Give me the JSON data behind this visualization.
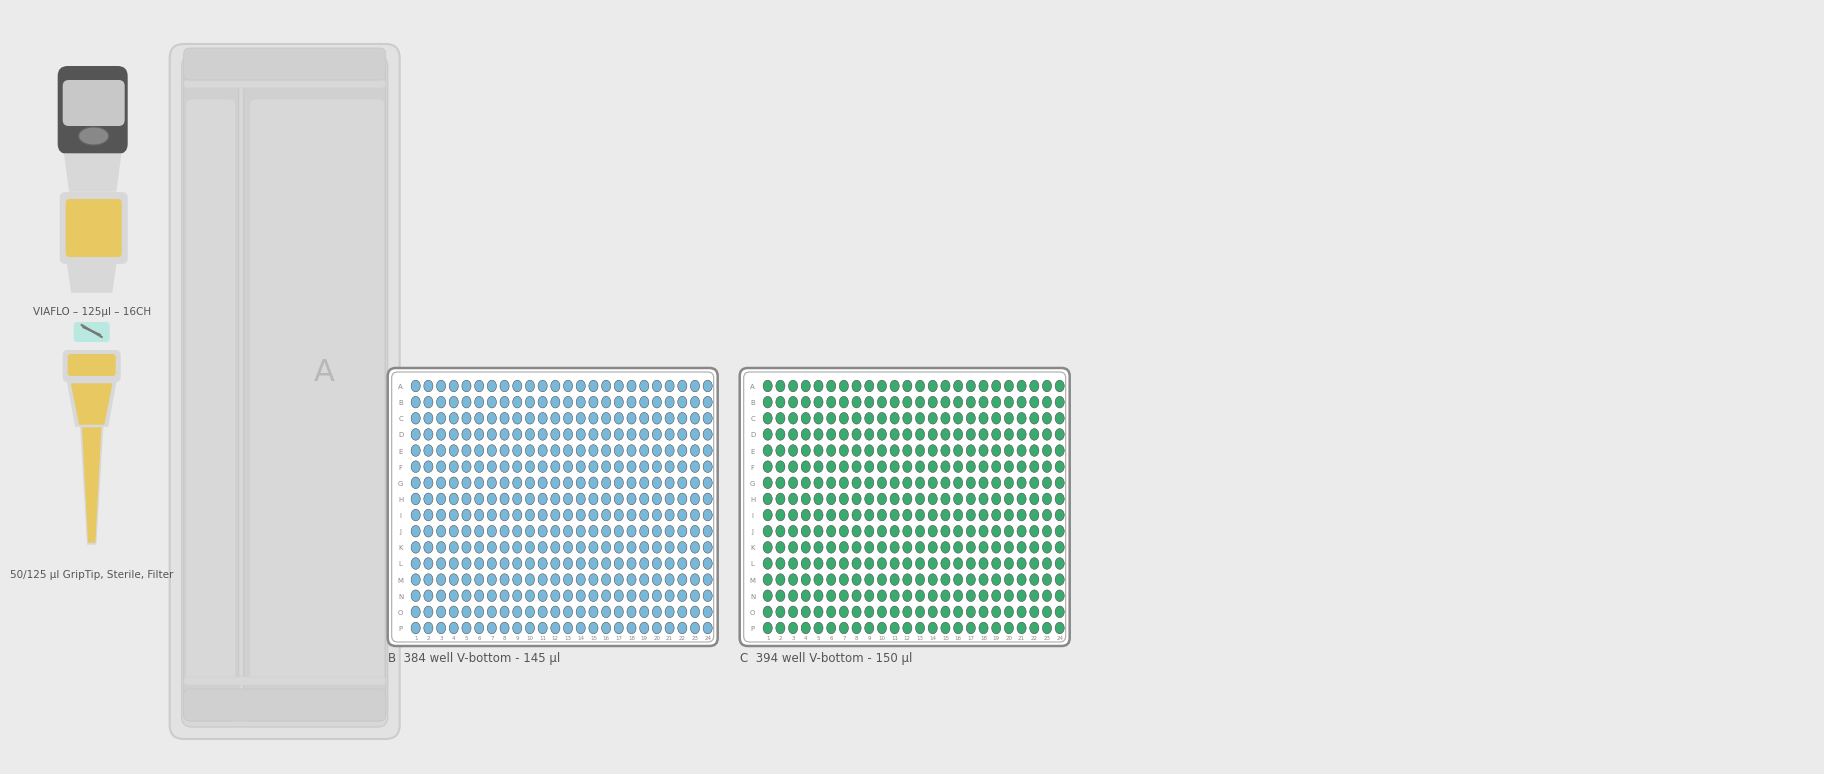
{
  "bg_color": "#ebebeb",
  "pipette_label": "VIAFLO – 125μl – 16CH",
  "tip_label": "50/125 μl GripTip, Sterile, Filter",
  "plate_b_label": "B  384 well V-bottom - 145 μl",
  "plate_c_label": "C  394 well V-bottom - 150 μl",
  "plate_bg": "#ffffff",
  "blue_dot_fill": "#7ab8d9",
  "green_dot_fill": "#3aaa6e",
  "dot_outline": "#444444",
  "row_labels": [
    "A",
    "B",
    "C",
    "D",
    "E",
    "F",
    "G",
    "H",
    "I",
    "J",
    "K",
    "L",
    "M",
    "N",
    "O",
    "P"
  ],
  "col_labels": [
    "1",
    "2",
    "3",
    "4",
    "5",
    "6",
    "7",
    "8",
    "9",
    "10",
    "11",
    "12",
    "13",
    "14",
    "15",
    "16",
    "17",
    "18",
    "19",
    "20",
    "21",
    "22",
    "23",
    "24"
  ],
  "pipette_dark": "#555555",
  "pipette_light": "#d8d8d8",
  "pipette_screen": "#c8c8c8",
  "pipette_oval": "#888888",
  "pipette_yellow": "#e8c860",
  "edit_box_color": "#b8e8e0",
  "tip_body_color": "#d8d8d8",
  "tip_yellow": "#e8c860",
  "deck_outer_fill": "#e2e2e2",
  "deck_outer_edge": "#cccccc",
  "deck_mid_fill": "#d8d8d8",
  "deck_mid_edge": "#cccccc",
  "slot_outer_fill": "#d0d0d0",
  "slot_inner_fill": "#d8d8d8",
  "slot_label_color": "#b8b8b8",
  "label_color": "#888888",
  "text_color": "#555555"
}
